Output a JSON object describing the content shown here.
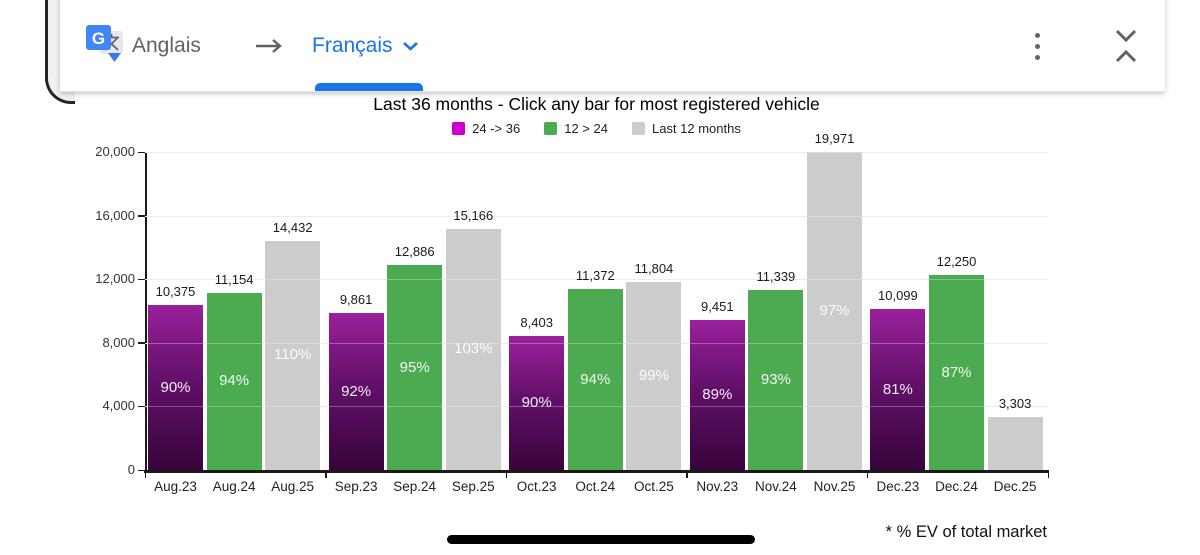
{
  "translate_bar": {
    "source_language": "Anglais",
    "target_language": "Français",
    "accent_color": "#1a73e8",
    "icon_names": [
      "google-translate-logo",
      "arrow-right-icon",
      "chevron-down-icon",
      "kebab-menu-icon",
      "collapse-icon"
    ]
  },
  "chart_data": {
    "type": "bar",
    "title": "Last 36 months - Click any bar for most registered vehicle",
    "footnote": "* % EV of total market",
    "ylim": [
      0,
      20000
    ],
    "grid": true,
    "legend_position": "top",
    "series": [
      {
        "name": "24 -> 36",
        "color": "#cb00cb",
        "bar_gradient": [
          "#9a209c",
          "#38043c"
        ]
      },
      {
        "name": "12 > 24",
        "color": "#4cab50"
      },
      {
        "name": "Last 12 months",
        "color": "#cccccc"
      }
    ],
    "yticks": [
      {
        "v": 0,
        "label": "0"
      },
      {
        "v": 4000,
        "label": "4,000"
      },
      {
        "v": 8000,
        "label": "8,000"
      },
      {
        "v": 12000,
        "label": "12,000"
      },
      {
        "v": 16000,
        "label": "16,000"
      },
      {
        "v": 20000,
        "label": "20,000"
      }
    ],
    "categories": [
      "Aug.23",
      "Aug.24",
      "Aug.25",
      "Sep.23",
      "Sep.24",
      "Sep.25",
      "Oct.23",
      "Oct.24",
      "Oct.25",
      "Nov.23",
      "Nov.24",
      "Nov.25",
      "Dec.23",
      "Dec.24",
      "Dec.25"
    ],
    "bars": [
      {
        "category": "Aug.23",
        "value": 10375,
        "label": "10,375",
        "pct": "90%",
        "series": 0
      },
      {
        "category": "Aug.24",
        "value": 11154,
        "label": "11,154",
        "pct": "94%",
        "series": 1
      },
      {
        "category": "Aug.25",
        "value": 14432,
        "label": "14,432",
        "pct": "110%",
        "series": 2
      },
      {
        "category": "Sep.23",
        "value": 9861,
        "label": "9,861",
        "pct": "92%",
        "series": 0
      },
      {
        "category": "Sep.24",
        "value": 12886,
        "label": "12,886",
        "pct": "95%",
        "series": 1
      },
      {
        "category": "Sep.25",
        "value": 15166,
        "label": "15,166",
        "pct": "103%",
        "series": 2
      },
      {
        "category": "Oct.23",
        "value": 8403,
        "label": "8,403",
        "pct": "90%",
        "series": 0
      },
      {
        "category": "Oct.24",
        "value": 11372,
        "label": "11,372",
        "pct": "94%",
        "series": 1
      },
      {
        "category": "Oct.25",
        "value": 11804,
        "label": "11,804",
        "pct": "99%",
        "series": 2
      },
      {
        "category": "Nov.23",
        "value": 9451,
        "label": "9,451",
        "pct": "89%",
        "series": 0
      },
      {
        "category": "Nov.24",
        "value": 11339,
        "label": "11,339",
        "pct": "93%",
        "series": 1
      },
      {
        "category": "Nov.25",
        "value": 19971,
        "label": "19,971",
        "pct": "97%",
        "series": 2
      },
      {
        "category": "Dec.23",
        "value": 10099,
        "label": "10,099",
        "pct": "81%",
        "series": 0
      },
      {
        "category": "Dec.24",
        "value": 12250,
        "label": "12,250",
        "pct": "87%",
        "series": 1
      },
      {
        "category": "Dec.25",
        "value": 3303,
        "label": "3,303",
        "pct": "",
        "series": 2
      }
    ]
  }
}
